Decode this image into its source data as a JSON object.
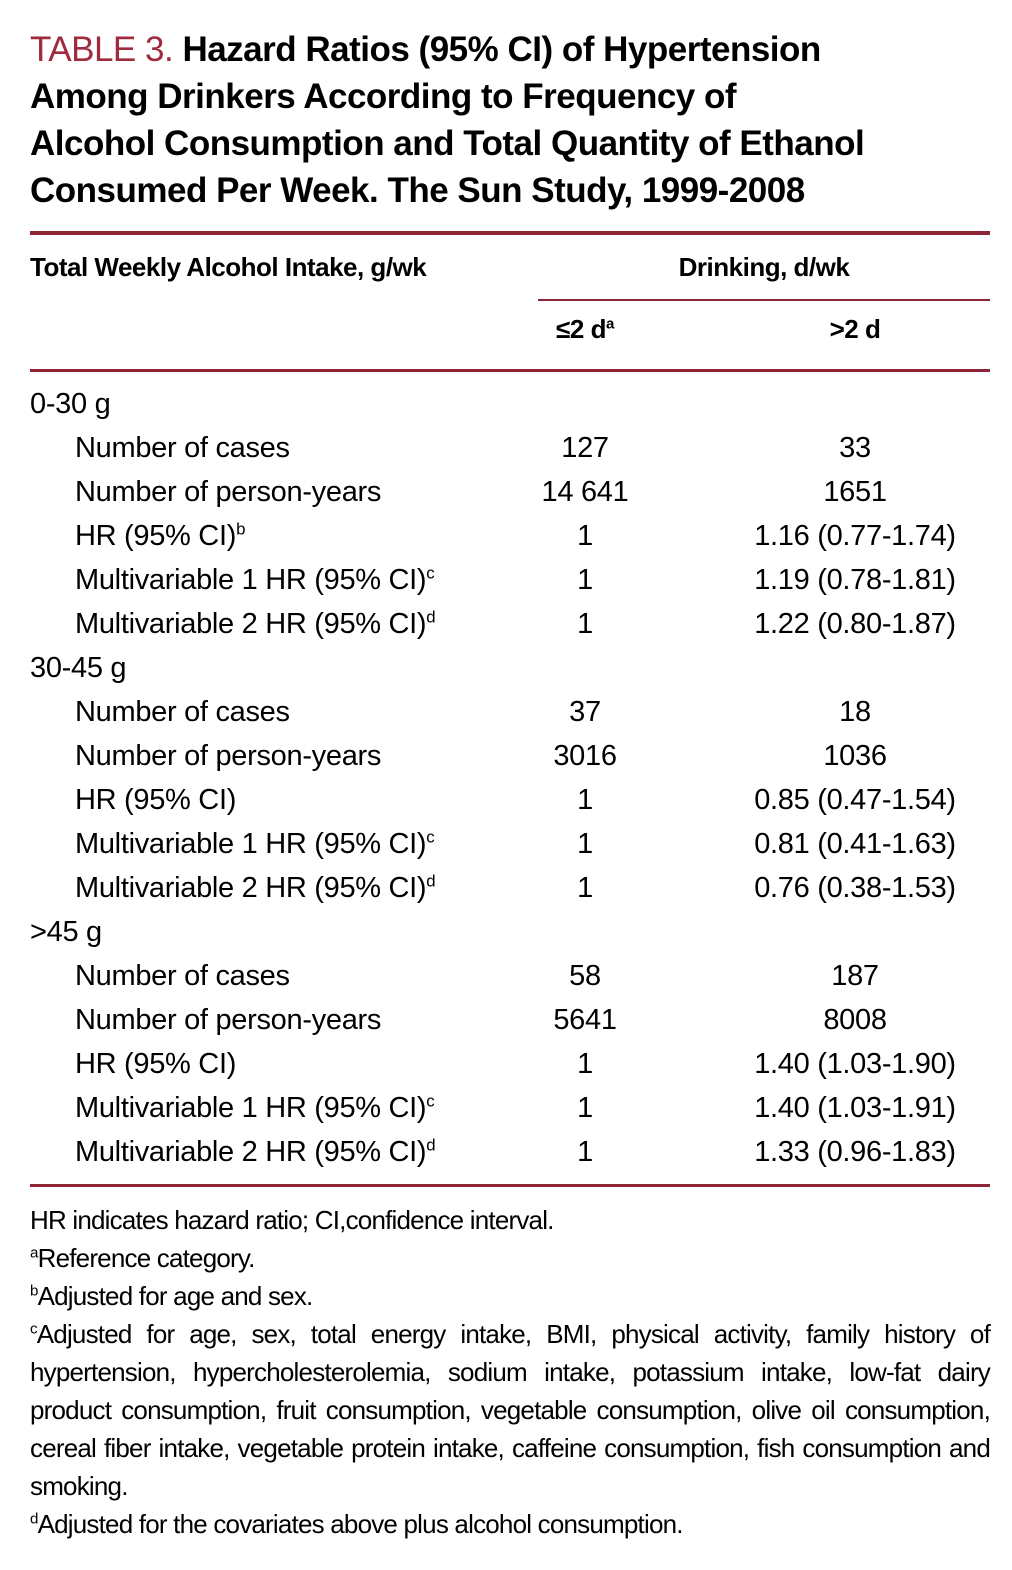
{
  "title": {
    "label": "TABLE 3.",
    "line1": "Hazard Ratios (95% CI) of Hypertension",
    "line2": "Among Drinkers According to Frequency of",
    "line3": "Alcohol Consumption and Total Quantity of Ethanol",
    "line4": "Consumed Per Week. The Sun Study, 1999-2008"
  },
  "table": {
    "col1_header": "Total Weekly Alcohol Intake, g/wk",
    "group_header": "Drinking, d/wk",
    "sub_headers": [
      {
        "text": "≤2 d",
        "sup": "a"
      },
      {
        "text": ">2 d",
        "sup": ""
      }
    ],
    "groups": [
      {
        "label": "0-30 g",
        "rows": [
          {
            "label": "Number of cases",
            "sup": "",
            "col1": "127",
            "col2": "33"
          },
          {
            "label": "Number of person-years",
            "sup": "",
            "col1": "14 641",
            "col2": "1651"
          },
          {
            "label": "HR (95% CI)",
            "sup": "b",
            "col1": "1",
            "col2": "1.16 (0.77-1.74)"
          },
          {
            "label": "Multivariable 1 HR (95% CI)",
            "sup": "c",
            "col1": "1",
            "col2": "1.19 (0.78-1.81)"
          },
          {
            "label": "Multivariable 2 HR (95% CI)",
            "sup": "d",
            "col1": "1",
            "col2": "1.22 (0.80-1.87)"
          }
        ]
      },
      {
        "label": "30-45 g",
        "rows": [
          {
            "label": "Number of cases",
            "sup": "",
            "col1": "37",
            "col2": "18"
          },
          {
            "label": "Number of person-years",
            "sup": "",
            "col1": "3016",
            "col2": "1036"
          },
          {
            "label": "HR (95% CI)",
            "sup": "",
            "col1": "1",
            "col2": "0.85 (0.47-1.54)"
          },
          {
            "label": "Multivariable 1 HR (95% CI)",
            "sup": "c",
            "col1": "1",
            "col2": "0.81 (0.41-1.63)"
          },
          {
            "label": "Multivariable 2 HR (95% CI)",
            "sup": "d",
            "col1": "1",
            "col2": "0.76 (0.38-1.53)"
          }
        ]
      },
      {
        "label": ">45 g",
        "rows": [
          {
            "label": "Number of cases",
            "sup": "",
            "col1": "58",
            "col2": "187"
          },
          {
            "label": "Number of person-years",
            "sup": "",
            "col1": "5641",
            "col2": "8008"
          },
          {
            "label": "HR (95% CI)",
            "sup": "",
            "col1": "1",
            "col2": "1.40 (1.03-1.90)"
          },
          {
            "label": "Multivariable 1 HR (95% CI)",
            "sup": "c",
            "col1": "1",
            "col2": "1.40 (1.03-1.91)"
          },
          {
            "label": "Multivariable 2 HR (95% CI)",
            "sup": "d",
            "col1": "1",
            "col2": "1.33 (0.96-1.83)"
          }
        ]
      }
    ]
  },
  "footnotes": [
    {
      "sup": "",
      "text": "HR indicates hazard ratio; CI,confidence interval."
    },
    {
      "sup": "a",
      "text": "Reference category."
    },
    {
      "sup": "b",
      "text": "Adjusted for age and sex."
    },
    {
      "sup": "c",
      "text": "Adjusted for age, sex, total energy intake, BMI, physical activity, family history of hypertension, hypercholesterolemia, sodium intake, potassium intake, low-fat dairy product consumption, fruit consumption, vegetable consumption, olive oil consumption, cereal fiber intake, vegetable protein intake, caffeine consumption, fish consumption and smoking."
    },
    {
      "sup": "d",
      "text": "Adjusted for the covariates above plus alcohol consumption."
    }
  ],
  "colors": {
    "title_red": "#9e2b3e",
    "rule_red": "#8e2537"
  }
}
